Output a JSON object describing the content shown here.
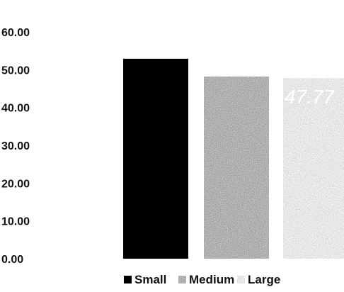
{
  "chart_data": {
    "type": "bar",
    "categories": [
      "Small",
      "Medium",
      "Large"
    ],
    "series": [
      {
        "name": "Small",
        "value": 52.9,
        "color": "#000000",
        "pattern": "solid"
      },
      {
        "name": "Medium",
        "value": 48.2,
        "color": "#222222",
        "pattern": "speckled"
      },
      {
        "name": "Large",
        "value": 47.77,
        "color": "#8a8a8a",
        "pattern": "grainy"
      }
    ],
    "data_labels": [
      "",
      "",
      "47.77"
    ],
    "title": "",
    "xlabel": "",
    "ylabel": "",
    "ylim": [
      0,
      60
    ],
    "yticks": [
      "0.00",
      "10.00",
      "20.00",
      "30.00",
      "40.00",
      "50.00",
      "60.00"
    ],
    "grid": false,
    "legend_position": "bottom"
  }
}
